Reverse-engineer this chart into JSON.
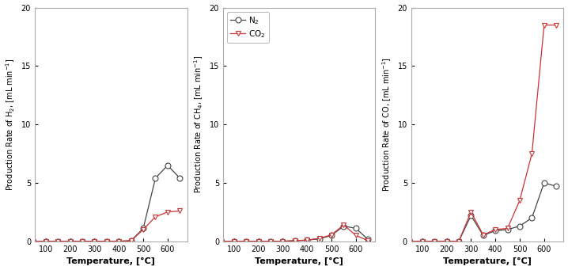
{
  "temp": [
    50,
    100,
    150,
    200,
    250,
    300,
    350,
    400,
    450,
    500,
    550,
    600,
    650
  ],
  "H2_N2": [
    0.0,
    0.0,
    0.0,
    0.0,
    0.0,
    0.0,
    0.0,
    0.0,
    0.05,
    1.1,
    5.4,
    6.5,
    5.4
  ],
  "H2_CO2": [
    0.0,
    0.0,
    0.0,
    0.0,
    0.0,
    0.0,
    0.0,
    0.0,
    0.05,
    1.0,
    2.1,
    2.5,
    2.6
  ],
  "CH4_N2": [
    0.0,
    0.0,
    0.0,
    0.0,
    0.0,
    0.0,
    0.05,
    0.1,
    0.2,
    0.5,
    1.3,
    1.1,
    0.15
  ],
  "CH4_CO2": [
    0.0,
    0.0,
    0.0,
    0.0,
    0.0,
    0.0,
    0.05,
    0.1,
    0.25,
    0.55,
    1.4,
    0.5,
    0.05
  ],
  "CO_N2": [
    0.0,
    0.0,
    0.0,
    0.0,
    0.0,
    2.2,
    0.5,
    0.9,
    1.0,
    1.3,
    2.0,
    5.0,
    4.7
  ],
  "CO_CO2": [
    0.0,
    0.0,
    0.0,
    0.0,
    0.0,
    2.5,
    0.55,
    1.0,
    1.1,
    3.5,
    7.5,
    18.5,
    18.5
  ],
  "color_N2": "#444444",
  "color_CO2": "#cc3333",
  "ylim": [
    0,
    20
  ],
  "yticks": [
    0,
    5,
    10,
    15,
    20
  ],
  "xlim": [
    55,
    680
  ],
  "xticks": [
    100,
    200,
    300,
    400,
    500,
    600
  ],
  "xlabel": "Temperature, [°C]",
  "ylabel_H2": "Production Rate of H$_2$, [mL min$^{-1}$]",
  "ylabel_CH4": "Production Rate of CH$_4$, [mL min$^{-1}$]",
  "ylabel_CO": "Production Rate of CO, [mL min$^{-1}$]",
  "legend_N2": "N$_2$",
  "legend_CO2": "CO$_2$",
  "marker_N2": "o",
  "marker_CO2": "v",
  "markersize": 5,
  "linewidth": 0.9,
  "spine_color": "#aaaaaa",
  "figsize": [
    7.18,
    3.41
  ],
  "dpi": 100
}
